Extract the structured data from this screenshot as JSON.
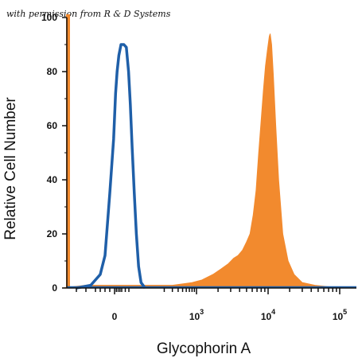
{
  "watermark": "with permission from R & D Systems",
  "chart_data": {
    "type": "area",
    "xlabel": "Glycophorin A",
    "ylabel": "Relative Cell Number",
    "x_scale": "biexponential",
    "ylim": [
      0,
      100
    ],
    "y_ticks": [
      0,
      20,
      40,
      60,
      80,
      100
    ],
    "x_ticks": [
      {
        "base": "0",
        "exp": ""
      },
      {
        "base": "10",
        "exp": "3"
      },
      {
        "base": "10",
        "exp": "4"
      },
      {
        "base": "10",
        "exp": "5"
      }
    ],
    "grid": false,
    "colors": {
      "isotype": "#1f5fa8",
      "stained": "#f28a2e"
    },
    "series": [
      {
        "style": "outline",
        "color": "#1f5fa8",
        "points": [
          [
            -40,
            0
          ],
          [
            -25,
            1
          ],
          [
            -15,
            5
          ],
          [
            -10,
            12
          ],
          [
            -5,
            35
          ],
          [
            -1,
            55
          ],
          [
            3,
            72
          ],
          [
            7,
            80
          ],
          [
            12,
            86
          ],
          [
            18,
            90
          ],
          [
            26,
            90
          ],
          [
            33,
            89
          ],
          [
            39,
            80
          ],
          [
            44,
            68
          ],
          [
            49,
            52
          ],
          [
            55,
            35
          ],
          [
            61,
            20
          ],
          [
            67,
            8
          ],
          [
            74,
            2
          ],
          [
            85,
            0
          ]
        ]
      },
      {
        "style": "filled",
        "color": "#f28a2e",
        "points": [
          [
            -55,
            0
          ],
          [
            -30,
            1
          ],
          [
            20,
            1
          ],
          [
            100,
            1
          ],
          [
            300,
            1
          ],
          [
            800,
            2
          ],
          [
            1200,
            3
          ],
          [
            1700,
            5
          ],
          [
            2200,
            7
          ],
          [
            2800,
            9
          ],
          [
            3300,
            11
          ],
          [
            3800,
            12
          ],
          [
            4400,
            14
          ],
          [
            5000,
            17
          ],
          [
            5600,
            20
          ],
          [
            6200,
            27
          ],
          [
            6800,
            36
          ],
          [
            7400,
            50
          ],
          [
            8000,
            62
          ],
          [
            8600,
            73
          ],
          [
            9200,
            82
          ],
          [
            9800,
            88
          ],
          [
            10400,
            93
          ],
          [
            10700,
            94
          ],
          [
            11200,
            90
          ],
          [
            11800,
            79
          ],
          [
            12800,
            60
          ],
          [
            14000,
            40
          ],
          [
            16000,
            20
          ],
          [
            19000,
            10
          ],
          [
            23000,
            5
          ],
          [
            30000,
            2
          ],
          [
            45000,
            1
          ],
          [
            100000,
            0
          ]
        ]
      }
    ]
  }
}
